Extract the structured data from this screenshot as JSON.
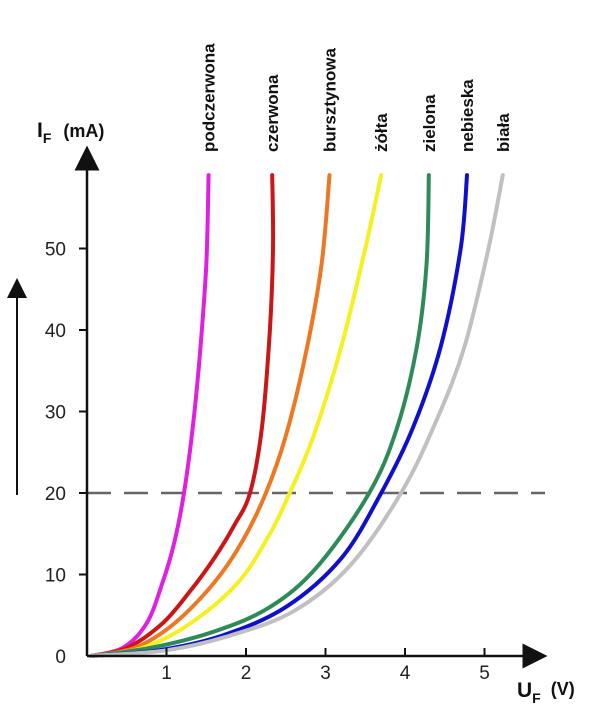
{
  "chart_data": {
    "type": "line",
    "xlabel": "U",
    "xlabel_sub": "F",
    "xlabel_unit": "(V)",
    "ylabel": "I",
    "ylabel_sub": "F",
    "ylabel_unit": "(mA)",
    "xlim": [
      0,
      5.5
    ],
    "ylim": [
      0,
      60
    ],
    "x_ticks": [
      "1",
      "2",
      "3",
      "4",
      "5"
    ],
    "y_ticks": [
      "0",
      "10",
      "20",
      "30",
      "40",
      "50"
    ],
    "reference_line": {
      "y": 20,
      "style": "dashed",
      "color": "#666666"
    },
    "trend_arrow": "up",
    "series": [
      {
        "name": "podczerwona",
        "color": "#e020e0",
        "points": [
          [
            0.05,
            0
          ],
          [
            0.45,
            1
          ],
          [
            0.75,
            4
          ],
          [
            0.95,
            9
          ],
          [
            1.1,
            14
          ],
          [
            1.22,
            20
          ],
          [
            1.33,
            28
          ],
          [
            1.42,
            37
          ],
          [
            1.5,
            48
          ],
          [
            1.53,
            59
          ]
        ]
      },
      {
        "name": "czerwona",
        "color": "#cc1515",
        "points": [
          [
            0.05,
            0
          ],
          [
            0.5,
            1
          ],
          [
            0.95,
            4
          ],
          [
            1.3,
            8
          ],
          [
            1.6,
            12
          ],
          [
            1.85,
            16
          ],
          [
            2.05,
            20
          ],
          [
            2.2,
            28
          ],
          [
            2.3,
            40
          ],
          [
            2.34,
            50
          ],
          [
            2.33,
            59
          ]
        ]
      },
      {
        "name": "bursztynowa",
        "color": "#ee7722",
        "points": [
          [
            0.05,
            0
          ],
          [
            0.6,
            1
          ],
          [
            1.1,
            4
          ],
          [
            1.6,
            9
          ],
          [
            1.95,
            14
          ],
          [
            2.25,
            20
          ],
          [
            2.5,
            27
          ],
          [
            2.75,
            37
          ],
          [
            2.95,
            48
          ],
          [
            3.05,
            59
          ]
        ]
      },
      {
        "name": "żółta",
        "color": "#f5f020",
        "points": [
          [
            0.05,
            0
          ],
          [
            0.7,
            1
          ],
          [
            1.3,
            4
          ],
          [
            1.9,
            9
          ],
          [
            2.3,
            15
          ],
          [
            2.55,
            20
          ],
          [
            2.85,
            27
          ],
          [
            3.2,
            38
          ],
          [
            3.5,
            50
          ],
          [
            3.7,
            59
          ]
        ]
      },
      {
        "name": "zielona",
        "color": "#2e8b57",
        "points": [
          [
            0.05,
            0
          ],
          [
            0.8,
            1
          ],
          [
            1.6,
            3
          ],
          [
            2.3,
            6
          ],
          [
            2.9,
            11
          ],
          [
            3.55,
            20
          ],
          [
            3.9,
            28
          ],
          [
            4.15,
            38
          ],
          [
            4.27,
            48
          ],
          [
            4.3,
            59
          ]
        ]
      },
      {
        "name": "nebieska",
        "color": "#1010cc",
        "points": [
          [
            0.05,
            0
          ],
          [
            0.9,
            0.7
          ],
          [
            1.7,
            2.5
          ],
          [
            2.5,
            6
          ],
          [
            3.2,
            12
          ],
          [
            3.7,
            20
          ],
          [
            4.1,
            28
          ],
          [
            4.45,
            38
          ],
          [
            4.7,
            50
          ],
          [
            4.78,
            59
          ]
        ]
      },
      {
        "name": "biała",
        "color": "#c0c0c0",
        "points": [
          [
            0.05,
            0
          ],
          [
            1.0,
            0.7
          ],
          [
            1.8,
            2.5
          ],
          [
            2.6,
            5.5
          ],
          [
            3.3,
            11
          ],
          [
            3.95,
            20
          ],
          [
            4.4,
            29
          ],
          [
            4.75,
            38
          ],
          [
            5.05,
            50
          ],
          [
            5.23,
            59
          ]
        ]
      }
    ]
  }
}
